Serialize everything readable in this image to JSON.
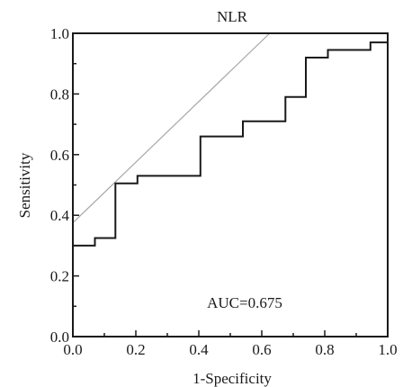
{
  "chart_data": {
    "type": "line",
    "title": "NLR",
    "xlabel": "1-Specificity",
    "ylabel": "Sensitivity",
    "xlim": [
      0.0,
      1.0
    ],
    "ylim": [
      0.0,
      1.0
    ],
    "x_ticks": [
      "0.0",
      "0.2",
      "0.4",
      "0.6",
      "0.8",
      "1.0"
    ],
    "y_ticks": [
      "0.0",
      "0.2",
      "0.4",
      "0.6",
      "0.8",
      "1.0"
    ],
    "grid": false,
    "annotation": "AUC=0.675",
    "series": [
      {
        "role": "roc-curve",
        "color": "#1a1a1a",
        "style": "step",
        "x": [
          0.0,
          0.0,
          0.07,
          0.07,
          0.135,
          0.135,
          0.205,
          0.205,
          0.405,
          0.405,
          0.54,
          0.54,
          0.675,
          0.675,
          0.74,
          0.74,
          0.81,
          0.81,
          0.945,
          0.945,
          1.0
        ],
        "y": [
          0.0,
          0.3,
          0.3,
          0.325,
          0.325,
          0.505,
          0.505,
          0.53,
          0.53,
          0.66,
          0.66,
          0.71,
          0.71,
          0.79,
          0.79,
          0.92,
          0.92,
          0.945,
          0.945,
          0.97,
          0.97
        ]
      },
      {
        "role": "reference-line",
        "color": "#a6a6a6",
        "style": "straight",
        "x": [
          0.0,
          0.625
        ],
        "y": [
          0.375,
          1.0
        ]
      }
    ]
  }
}
